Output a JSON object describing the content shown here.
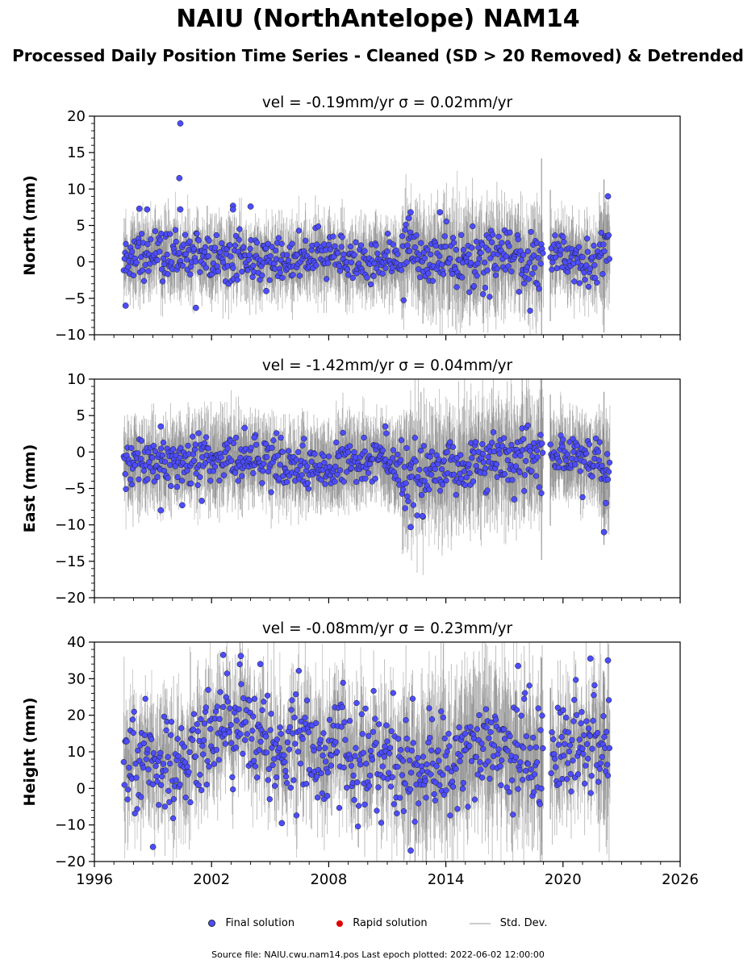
{
  "title": "NAIU (NorthAntelope) NAM14",
  "subtitle": "Processed Daily Position Time Series - Cleaned (SD > 20 Removed) & Detrended",
  "legend": {
    "final": "Final solution",
    "rapid": "Rapid solution",
    "std": "Std. Dev."
  },
  "footer": "Source file: NAIU.cwu.nam14.pos  Last epoch plotted: 2022-06-02 12:00:00",
  "colors": {
    "final": "#4d4dff",
    "rapid": "#e00000",
    "std": "#cccccc",
    "std_dense": "#6e6e6e"
  },
  "chart_data": [
    {
      "type": "scatter",
      "component": "north",
      "title": "vel = -0.19mm/yr   σ = 0.02mm/yr",
      "ylabel": "North (mm)",
      "xlim": [
        1996,
        2026
      ],
      "ylim": [
        -10,
        20
      ],
      "x_ticks": [
        1996,
        2002,
        2008,
        2014,
        2020,
        2026
      ],
      "y_ticks": [
        -10,
        -5,
        0,
        5,
        10,
        15,
        20
      ],
      "x_tick_labels": [],
      "y_tick_labels": [
        "−10",
        "−5",
        "0",
        "5",
        "10",
        "15",
        "20"
      ],
      "data_span": [
        1997.5,
        2022.4
      ],
      "gap": [
        2019.0,
        2019.35
      ],
      "series": [
        {
          "values_approx": [
            [
              1997.6,
              0.5
            ],
            [
              1998.5,
              1.0
            ],
            [
              1999.5,
              1.2
            ],
            [
              2000.5,
              0.8
            ],
            [
              2001.5,
              0.6
            ],
            [
              2002.5,
              0.4
            ],
            [
              2003.5,
              0.2
            ],
            [
              2004.5,
              0.0
            ],
            [
              2005.5,
              0.0
            ],
            [
              2006.5,
              0.3
            ],
            [
              2007.5,
              0.4
            ],
            [
              2008.5,
              0.3
            ],
            [
              2009.5,
              0.2
            ],
            [
              2010.5,
              0.3
            ],
            [
              2011.5,
              0.6
            ],
            [
              2012.5,
              0.8
            ],
            [
              2013.5,
              0.5
            ],
            [
              2014.5,
              0.3
            ],
            [
              2015.5,
              0.1
            ],
            [
              2016.5,
              0.2
            ],
            [
              2017.5,
              0.4
            ],
            [
              2018.5,
              0.5
            ],
            [
              2019.6,
              1.0
            ],
            [
              2020.5,
              0.6
            ],
            [
              2021.5,
              0.3
            ],
            [
              2022.3,
              1.0
            ]
          ],
          "outliers": [
            [
              1997.6,
              -6.0
            ],
            [
              1998.3,
              7.3
            ],
            [
              1998.7,
              7.2
            ],
            [
              2000.4,
              19.0
            ],
            [
              2000.35,
              11.5
            ],
            [
              2000.4,
              7.2
            ],
            [
              2001.2,
              -6.3
            ],
            [
              2003.1,
              7.7
            ],
            [
              2003.1,
              7.2
            ],
            [
              2004.0,
              7.6
            ],
            [
              2004.8,
              -4.0
            ],
            [
              2012.1,
              6.0
            ],
            [
              2012.2,
              6.8
            ],
            [
              2013.7,
              6.8
            ],
            [
              2022.3,
              9.0
            ]
          ],
          "spread": 1.6,
          "std_spread": 3.5
        }
      ]
    },
    {
      "type": "scatter",
      "component": "east",
      "title": "vel = -1.42mm/yr   σ = 0.04mm/yr",
      "ylabel": "East (mm)",
      "xlim": [
        1996,
        2026
      ],
      "ylim": [
        -20,
        10
      ],
      "x_ticks": [
        1996,
        2002,
        2008,
        2014,
        2020,
        2026
      ],
      "y_ticks": [
        -20,
        -15,
        -10,
        -5,
        0,
        5,
        10
      ],
      "x_tick_labels": [],
      "y_tick_labels": [
        "−20",
        "−15",
        "−10",
        "−5",
        "0",
        "5",
        "10"
      ],
      "data_span": [
        1997.5,
        2022.4
      ],
      "gap": [
        2019.0,
        2019.35
      ],
      "series": [
        {
          "values_approx": [
            [
              1997.6,
              -0.8
            ],
            [
              1998.5,
              -1.5
            ],
            [
              1999.5,
              -2.0
            ],
            [
              2000.5,
              -1.8
            ],
            [
              2001.5,
              -1.2
            ],
            [
              2002.5,
              -0.9
            ],
            [
              2003.5,
              -0.8
            ],
            [
              2004.5,
              -1.0
            ],
            [
              2005.5,
              -1.5
            ],
            [
              2006.5,
              -2.0
            ],
            [
              2007.5,
              -2.0
            ],
            [
              2008.5,
              -1.5
            ],
            [
              2009.5,
              -1.0
            ],
            [
              2010.5,
              -0.8
            ],
            [
              2011.5,
              -1.5
            ],
            [
              2012.0,
              -3.5
            ],
            [
              2012.5,
              -3.0
            ],
            [
              2013.5,
              -2.5
            ],
            [
              2014.5,
              -2.0
            ],
            [
              2015.5,
              -1.5
            ],
            [
              2016.5,
              -1.0
            ],
            [
              2017.5,
              -1.2
            ],
            [
              2018.5,
              -1.5
            ],
            [
              2019.6,
              -1.0
            ],
            [
              2020.5,
              -1.0
            ],
            [
              2021.5,
              -1.5
            ],
            [
              2022.3,
              -2.5
            ]
          ],
          "outliers": [
            [
              1999.4,
              3.5
            ],
            [
              1999.4,
              -8.0
            ],
            [
              2000.5,
              -7.3
            ],
            [
              2001.5,
              -6.7
            ],
            [
              2003.7,
              3.3
            ],
            [
              2004.2,
              2.0
            ],
            [
              2010.9,
              3.5
            ],
            [
              2012.2,
              -10.3
            ],
            [
              2012.8,
              -8.8
            ],
            [
              2017.5,
              -6.5
            ],
            [
              2022.1,
              -11.0
            ],
            [
              2022.2,
              -7.0
            ]
          ],
          "spread": 1.6,
          "std_spread": 4.0
        }
      ]
    },
    {
      "type": "scatter",
      "component": "height",
      "title": "vel = -0.08mm/yr   σ = 0.23mm/yr",
      "ylabel": "Height (mm)",
      "xlim": [
        1996,
        2026
      ],
      "ylim": [
        -20,
        40
      ],
      "x_ticks": [
        1996,
        2002,
        2008,
        2014,
        2020,
        2026
      ],
      "y_ticks": [
        -20,
        -10,
        0,
        10,
        20,
        30,
        40
      ],
      "x_tick_labels": [
        "1996",
        "2002",
        "2008",
        "2014",
        "2020",
        "2026"
      ],
      "y_tick_labels": [
        "−20",
        "−10",
        "0",
        "10",
        "20",
        "30",
        "40"
      ],
      "data_span": [
        1997.5,
        2022.4
      ],
      "gap": [
        2019.0,
        2019.35
      ],
      "series": [
        {
          "values_approx": [
            [
              1997.6,
              10
            ],
            [
              1998.5,
              8
            ],
            [
              1999.5,
              6
            ],
            [
              2000.5,
              8
            ],
            [
              2001.5,
              10
            ],
            [
              2002.5,
              18
            ],
            [
              2003.5,
              20
            ],
            [
              2004.5,
              14
            ],
            [
              2005.5,
              12
            ],
            [
              2006.5,
              11
            ],
            [
              2007.5,
              10
            ],
            [
              2008.5,
              11
            ],
            [
              2009.5,
              10
            ],
            [
              2010.5,
              9
            ],
            [
              2011.5,
              6
            ],
            [
              2012.5,
              5
            ],
            [
              2013.5,
              7
            ],
            [
              2014.5,
              9
            ],
            [
              2015.5,
              12
            ],
            [
              2016.5,
              13
            ],
            [
              2017.5,
              10
            ],
            [
              2018.5,
              8
            ],
            [
              2019.6,
              10
            ],
            [
              2020.5,
              12
            ],
            [
              2021.5,
              14
            ],
            [
              2022.3,
              10
            ]
          ],
          "outliers": [
            [
              1999.0,
              -16
            ],
            [
              2002.6,
              36.5
            ],
            [
              2003.5,
              36.2
            ],
            [
              2004.5,
              34.0
            ],
            [
              2005.6,
              -9.5
            ],
            [
              2012.2,
              -17.0
            ],
            [
              2017.7,
              33.5
            ],
            [
              2021.4,
              35.5
            ],
            [
              2022.3,
              35.0
            ]
          ],
          "spread": 7.0,
          "std_spread": 10.0
        }
      ]
    }
  ]
}
